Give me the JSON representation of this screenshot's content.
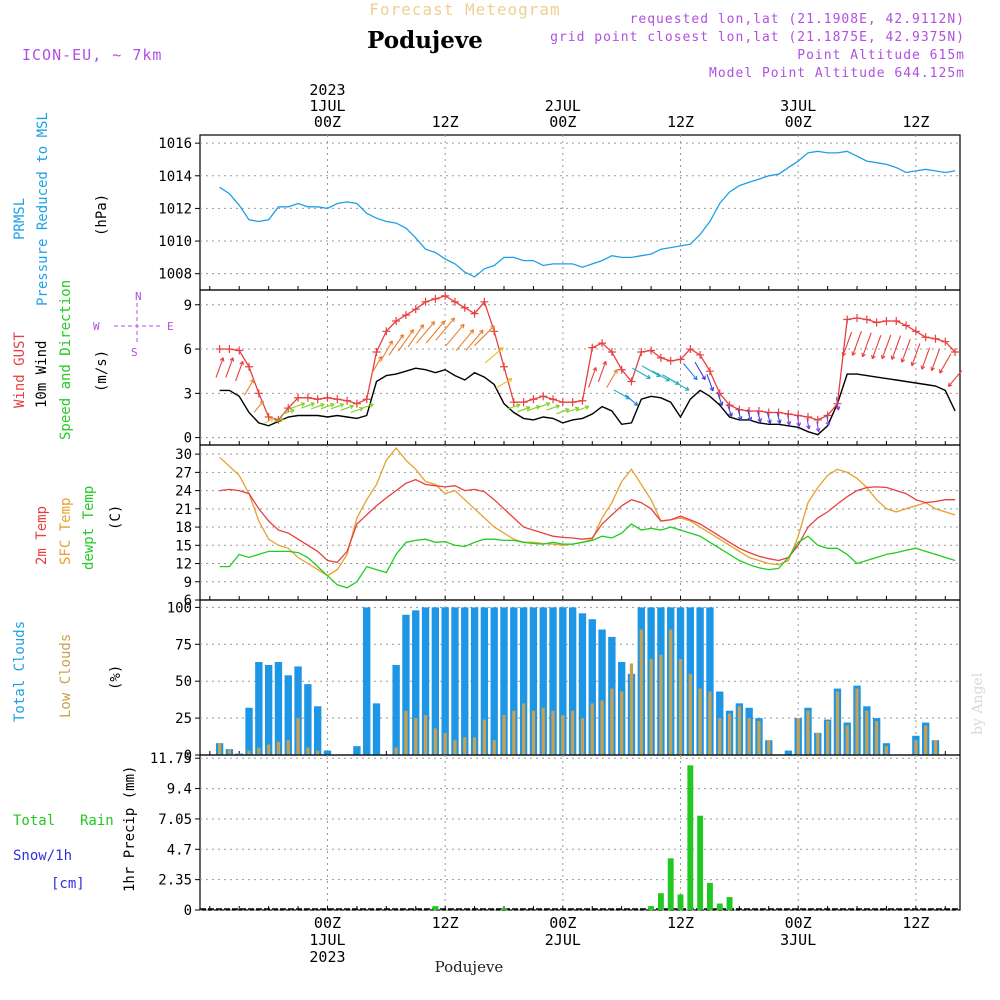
{
  "header": {
    "subtitle": "Forecast Meteogram",
    "title": "Podujeve",
    "model": "ICON-EU, ~ 7km",
    "requested": "requested lon,lat (21.1908E, 42.9112N)",
    "gridpoint": "grid point closest lon,lat (21.1875E, 42.9375N)",
    "point_alt": "Point Altitude 615m",
    "model_alt": "Model Point Altitude 644.125m",
    "footer": "Podujeve",
    "watermark": "by Angel"
  },
  "colors": {
    "pressure": "#1ea0e8",
    "gust": "#e84040",
    "wind": "#000000",
    "t2m": "#e84040",
    "sfc": "#e8a030",
    "dewpt": "#22cc22",
    "total_cloud": "#1e96e6",
    "low_cloud": "#c8a050",
    "rain": "#22c822",
    "snow": "#3030e0",
    "purple": "#b050e0"
  },
  "time_axis": {
    "top": [
      {
        "h": 0,
        "lines": [
          "2023",
          "1JUL",
          "00Z"
        ]
      },
      {
        "h": 12,
        "lines": [
          "12Z"
        ]
      },
      {
        "h": 24,
        "lines": [
          "2JUL",
          "00Z"
        ]
      },
      {
        "h": 36,
        "lines": [
          "12Z"
        ]
      },
      {
        "h": 48,
        "lines": [
          "3JUL",
          "00Z"
        ]
      },
      {
        "h": 60,
        "lines": [
          "12Z"
        ]
      }
    ],
    "bottom": [
      {
        "h": 0,
        "lines": [
          "00Z",
          "1JUL",
          "2023"
        ]
      },
      {
        "h": 12,
        "lines": [
          "12Z"
        ]
      },
      {
        "h": 24,
        "lines": [
          "00Z",
          "2JUL"
        ]
      },
      {
        "h": 36,
        "lines": [
          "12Z"
        ]
      },
      {
        "h": 48,
        "lines": [
          "00Z",
          "3JUL"
        ]
      },
      {
        "h": 60,
        "lines": [
          "12Z"
        ]
      }
    ]
  },
  "panel_labels": {
    "pressure": {
      "l1": "PRMSL",
      "l2": "Pressure Reduced to MSL",
      "unit": "(hPa)"
    },
    "wind": {
      "l1": "Wind GUST",
      "l2": "10m Wind",
      "l3": "Speed and Direction",
      "unit": "(m/s)",
      "compass_n": "N",
      "compass_s": "S",
      "compass_w": "W",
      "compass_e": "E"
    },
    "temp": {
      "l1": "2m Temp",
      "l2": "SFC Temp",
      "l3": "dewpt Temp",
      "unit": "(C)"
    },
    "cloud": {
      "l1": "Total Clouds",
      "l2": "Low Clouds",
      "unit": "(%)"
    },
    "precip": {
      "l1": "Total",
      "l1b": "Rain",
      "l2": "Snow/1h",
      "l3": "[cm]",
      "unit": "1hr Precip (mm)"
    }
  },
  "chart_data": [
    {
      "type": "line",
      "name": "pressure",
      "ylim": [
        1007,
        1016.5
      ],
      "yticks": [
        "1008",
        "1010",
        "1012",
        "1014",
        "1016"
      ],
      "ytick_values": [
        1008,
        1010,
        1012,
        1014,
        1016
      ],
      "x_hours": [
        -11,
        -10,
        -9,
        -8,
        -7,
        -6,
        -5,
        -4,
        -3,
        -2,
        -1,
        0,
        1,
        2,
        3,
        4,
        5,
        6,
        7,
        8,
        9,
        10,
        11,
        12,
        13,
        14,
        15,
        16,
        17,
        18,
        19,
        20,
        21,
        22,
        23,
        24,
        25,
        26,
        27,
        28,
        29,
        30,
        31,
        32,
        33,
        34,
        35,
        36,
        37,
        38,
        39,
        40,
        41,
        42,
        43,
        44,
        45,
        46,
        47,
        48,
        49,
        50,
        51,
        52,
        53,
        54,
        55,
        56,
        57,
        58,
        59,
        60,
        61,
        62,
        63,
        64
      ],
      "values": [
        1013.3,
        1012.9,
        1012.2,
        1011.3,
        1011.2,
        1011.3,
        1012.1,
        1012.1,
        1012.3,
        1012.1,
        1012.1,
        1012.0,
        1012.3,
        1012.4,
        1012.3,
        1011.7,
        1011.4,
        1011.2,
        1011.1,
        1010.8,
        1010.2,
        1009.5,
        1009.3,
        1008.9,
        1008.6,
        1008.1,
        1007.8,
        1008.3,
        1008.5,
        1009.0,
        1009.0,
        1008.8,
        1008.8,
        1008.5,
        1008.6,
        1008.6,
        1008.6,
        1008.4,
        1008.6,
        1008.8,
        1009.1,
        1009.0,
        1009.0,
        1009.1,
        1009.2,
        1009.5,
        1009.6,
        1009.7,
        1009.8,
        1010.4,
        1011.2,
        1012.3,
        1013.0,
        1013.4,
        1013.6,
        1013.8,
        1014.0,
        1014.1,
        1014.5,
        1014.9,
        1015.4,
        1015.5,
        1015.4,
        1015.4,
        1015.5,
        1015.2,
        1014.9,
        1014.8,
        1014.7,
        1014.5,
        1014.2,
        1014.3,
        1014.4,
        1014.3,
        1014.2,
        1014.3
      ]
    },
    {
      "type": "line",
      "name": "wind",
      "ylim": [
        -0.5,
        10
      ],
      "yticks": [
        "0",
        "3",
        "6",
        "9"
      ],
      "ytick_values": [
        0,
        3,
        6,
        9
      ],
      "x_hours": [
        -11,
        -10,
        -9,
        -8,
        -7,
        -6,
        -5,
        -4,
        -3,
        -2,
        -1,
        0,
        1,
        2,
        3,
        4,
        5,
        6,
        7,
        8,
        9,
        10,
        11,
        12,
        13,
        14,
        15,
        16,
        17,
        18,
        19,
        20,
        21,
        22,
        23,
        24,
        25,
        26,
        27,
        28,
        29,
        30,
        31,
        32,
        33,
        34,
        35,
        36,
        37,
        38,
        39,
        40,
        41,
        42,
        43,
        44,
        45,
        46,
        47,
        48,
        49,
        50,
        51,
        52,
        53,
        54,
        55,
        56,
        57,
        58,
        59,
        60,
        61,
        62,
        63,
        64
      ],
      "gust": [
        6.0,
        6.0,
        5.9,
        4.8,
        3.0,
        1.4,
        1.2,
        2.0,
        2.7,
        2.7,
        2.6,
        2.7,
        2.6,
        2.5,
        2.3,
        2.6,
        5.8,
        7.2,
        7.9,
        8.3,
        8.7,
        9.2,
        9.4,
        9.6,
        9.2,
        8.8,
        8.4,
        9.2,
        7.2,
        4.8,
        2.4,
        2.4,
        2.6,
        2.8,
        2.6,
        2.4,
        2.4,
        2.5,
        6.1,
        6.4,
        5.8,
        4.6,
        3.8,
        5.8,
        5.9,
        5.4,
        5.2,
        5.3,
        6.0,
        5.6,
        4.5,
        3.0,
        2.2,
        1.9,
        1.8,
        1.8,
        1.7,
        1.7,
        1.6,
        1.5,
        1.4,
        1.2,
        1.5,
        2.3,
        8.0,
        8.1,
        8.0,
        7.8,
        7.9,
        7.9,
        7.6,
        7.2,
        6.8,
        6.7,
        6.5,
        5.8
      ],
      "wind": [
        3.2,
        3.2,
        2.8,
        1.7,
        1.0,
        0.8,
        1.1,
        1.4,
        1.5,
        1.5,
        1.5,
        1.4,
        1.5,
        1.4,
        1.3,
        1.5,
        3.8,
        4.2,
        4.3,
        4.5,
        4.7,
        4.6,
        4.4,
        4.6,
        4.2,
        3.9,
        4.4,
        4.1,
        3.6,
        2.3,
        1.7,
        1.3,
        1.2,
        1.4,
        1.3,
        1.0,
        1.2,
        1.3,
        1.6,
        2.1,
        1.8,
        0.9,
        1.0,
        2.6,
        2.8,
        2.7,
        2.4,
        1.4,
        2.6,
        3.2,
        2.8,
        2.2,
        1.4,
        1.2,
        1.2,
        1.0,
        0.9,
        0.9,
        0.8,
        0.7,
        0.4,
        0.2,
        0.8,
        2.3,
        4.3,
        4.3,
        4.2,
        4.1,
        4.0,
        3.9,
        3.8,
        3.7,
        3.6,
        3.5,
        3.2,
        1.8
      ],
      "dir_deg": [
        200,
        200,
        200,
        210,
        220,
        240,
        250,
        250,
        250,
        250,
        250,
        250,
        250,
        250,
        250,
        250,
        210,
        210,
        215,
        215,
        215,
        220,
        220,
        220,
        220,
        220,
        220,
        225,
        230,
        240,
        250,
        250,
        250,
        250,
        250,
        250,
        250,
        250,
        200,
        200,
        210,
        300,
        310,
        300,
        300,
        300,
        300,
        300,
        320,
        330,
        340,
        340,
        340,
        345,
        345,
        345,
        345,
        345,
        350,
        350,
        350,
        350,
        350,
        350,
        20,
        20,
        20,
        20,
        20,
        20,
        20,
        20,
        20,
        20,
        30,
        40
      ]
    },
    {
      "type": "line",
      "name": "temperature",
      "ylim": [
        6,
        31.5
      ],
      "yticks": [
        "6",
        "9",
        "12",
        "15",
        "18",
        "21",
        "24",
        "27",
        "30"
      ],
      "ytick_values": [
        6,
        9,
        12,
        15,
        18,
        21,
        24,
        27,
        30
      ],
      "x_hours": [
        -11,
        -10,
        -9,
        -8,
        -7,
        -6,
        -5,
        -4,
        -3,
        -2,
        -1,
        0,
        1,
        2,
        3,
        4,
        5,
        6,
        7,
        8,
        9,
        10,
        11,
        12,
        13,
        14,
        15,
        16,
        17,
        18,
        19,
        20,
        21,
        22,
        23,
        24,
        25,
        26,
        27,
        28,
        29,
        30,
        31,
        32,
        33,
        34,
        35,
        36,
        37,
        38,
        39,
        40,
        41,
        42,
        43,
        44,
        45,
        46,
        47,
        48,
        49,
        50,
        51,
        52,
        53,
        54,
        55,
        56,
        57,
        58,
        59,
        60,
        61,
        62,
        63,
        64
      ],
      "t2m": [
        24.0,
        24.2,
        24.0,
        23.5,
        21.0,
        19.0,
        17.5,
        17.0,
        16.0,
        15.0,
        14.0,
        12.5,
        12.2,
        14.0,
        18.5,
        20.0,
        21.5,
        22.8,
        24.0,
        25.2,
        25.8,
        25.0,
        24.8,
        24.6,
        24.8,
        24.0,
        24.2,
        23.8,
        22.5,
        21.0,
        19.5,
        18.0,
        17.5,
        17.0,
        16.5,
        16.3,
        16.2,
        16.0,
        16.2,
        18.5,
        20.0,
        21.5,
        22.5,
        22.0,
        21.0,
        19.0,
        19.2,
        19.8,
        19.2,
        18.5,
        17.5,
        16.5,
        15.5,
        14.5,
        13.8,
        13.2,
        12.8,
        12.5,
        13.0,
        15.0,
        18.0,
        19.5,
        20.5,
        21.8,
        23.0,
        24.0,
        24.5,
        24.6,
        24.5,
        24.0,
        23.5,
        22.5,
        22.0,
        22.2,
        22.5,
        22.5
      ],
      "sfc": [
        29.5,
        28.0,
        26.5,
        23.5,
        19.0,
        16.0,
        15.0,
        14.5,
        13.0,
        12.0,
        11.0,
        10.0,
        11.0,
        13.5,
        19.5,
        22.5,
        25.0,
        29.0,
        31.0,
        29.0,
        27.5,
        25.5,
        25.0,
        23.5,
        24.0,
        22.5,
        21.0,
        19.5,
        18.0,
        17.0,
        16.0,
        15.5,
        15.5,
        15.3,
        15.2,
        15.0,
        15.2,
        15.5,
        16.0,
        19.5,
        22.0,
        25.5,
        27.5,
        25.0,
        22.5,
        19.0,
        19.2,
        19.5,
        19.0,
        18.0,
        17.0,
        16.0,
        15.0,
        14.0,
        13.0,
        12.5,
        12.0,
        11.8,
        12.5,
        16.5,
        22.0,
        24.5,
        26.5,
        27.5,
        27.0,
        26.0,
        24.5,
        22.5,
        21.0,
        20.5,
        21.0,
        21.5,
        22.0,
        21.0,
        20.5,
        20.0
      ],
      "dewpt": [
        11.5,
        11.5,
        13.5,
        13.0,
        13.5,
        14.0,
        14.0,
        14.0,
        13.8,
        13.0,
        11.5,
        10.0,
        8.5,
        8.0,
        9.0,
        11.5,
        11.0,
        10.5,
        13.5,
        15.5,
        15.8,
        16.0,
        15.5,
        15.6,
        15.0,
        14.8,
        15.5,
        16.0,
        16.0,
        15.8,
        15.8,
        15.5,
        15.3,
        15.2,
        15.5,
        15.2,
        15.2,
        15.5,
        15.8,
        16.5,
        16.2,
        17.0,
        18.5,
        17.5,
        17.8,
        17.5,
        18.0,
        17.5,
        17.0,
        16.5,
        15.5,
        14.5,
        13.5,
        12.5,
        11.8,
        11.3,
        11.0,
        11.2,
        13.0,
        15.5,
        16.5,
        15.0,
        14.5,
        14.5,
        13.5,
        12.0,
        12.5,
        13.0,
        13.5,
        13.8,
        14.2,
        14.5,
        14.0,
        13.5,
        13.0,
        12.5
      ]
    },
    {
      "type": "bar",
      "name": "clouds",
      "ylim": [
        0,
        105
      ],
      "yticks": [
        "0",
        "25",
        "50",
        "75",
        "100"
      ],
      "ytick_values": [
        0,
        25,
        50,
        75,
        100
      ],
      "x_hours": [
        -11,
        -10,
        -9,
        -8,
        -7,
        -6,
        -5,
        -4,
        -3,
        -2,
        -1,
        0,
        1,
        2,
        3,
        4,
        5,
        6,
        7,
        8,
        9,
        10,
        11,
        12,
        13,
        14,
        15,
        16,
        17,
        18,
        19,
        20,
        21,
        22,
        23,
        24,
        25,
        26,
        27,
        28,
        29,
        30,
        31,
        32,
        33,
        34,
        35,
        36,
        37,
        38,
        39,
        40,
        41,
        42,
        43,
        44,
        45,
        46,
        47,
        48,
        49,
        50,
        51,
        52,
        53,
        54,
        55,
        56,
        57,
        58,
        59,
        60,
        61,
        62,
        63,
        64
      ],
      "total": [
        8,
        4,
        1,
        32,
        63,
        61,
        63,
        54,
        60,
        48,
        33,
        3,
        0,
        0,
        6,
        100,
        35,
        0,
        61,
        95,
        98,
        100,
        100,
        100,
        100,
        100,
        100,
        100,
        100,
        100,
        100,
        100,
        100,
        100,
        100,
        100,
        100,
        96,
        92,
        85,
        80,
        63,
        55,
        100,
        100,
        100,
        100,
        100,
        100,
        100,
        100,
        43,
        30,
        35,
        32,
        25,
        10,
        0,
        3,
        25,
        32,
        15,
        24,
        45,
        22,
        47,
        33,
        25,
        8,
        0,
        0,
        13,
        22,
        10,
        0,
        0
      ],
      "low": [
        8,
        4,
        1,
        3,
        5,
        7,
        9,
        10,
        25,
        5,
        3,
        0,
        0,
        0,
        0,
        0,
        0,
        0,
        5,
        30,
        25,
        27,
        18,
        15,
        10,
        12,
        12,
        24,
        10,
        27,
        30,
        35,
        30,
        32,
        30,
        27,
        30,
        25,
        35,
        37,
        45,
        43,
        62,
        85,
        65,
        68,
        85,
        65,
        55,
        45,
        43,
        25,
        28,
        33,
        25,
        23,
        10,
        0,
        0,
        25,
        30,
        15,
        23,
        43,
        20,
        45,
        30,
        23,
        6,
        0,
        0,
        10,
        20,
        10,
        0,
        0
      ]
    },
    {
      "type": "bar",
      "name": "precipitation",
      "ylim": [
        0,
        12
      ],
      "yticks": [
        "0",
        "2.35",
        "4.7",
        "7.05",
        "9.4",
        "11.75"
      ],
      "ytick_values": [
        0,
        2.35,
        4.7,
        7.05,
        9.4,
        11.75
      ],
      "x_hours": [
        11,
        18,
        33,
        34,
        35,
        36,
        37,
        38,
        39,
        40,
        41
      ],
      "values": [
        0.3,
        0.15,
        0.3,
        1.3,
        4.0,
        1.2,
        11.2,
        7.3,
        2.1,
        0.5,
        1.0
      ]
    }
  ]
}
